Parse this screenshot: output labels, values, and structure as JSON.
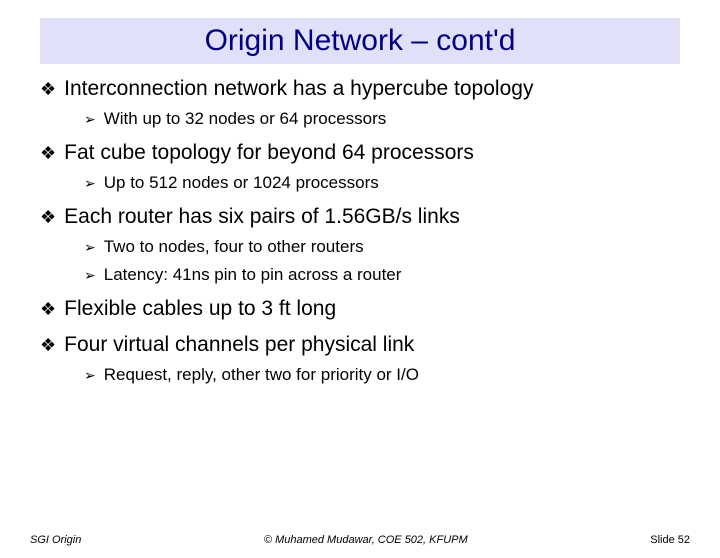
{
  "title": "Origin Network – cont'd",
  "bullets": [
    {
      "level": 1,
      "text": "Interconnection network has a hypercube topology"
    },
    {
      "level": 2,
      "text": "With up to 32 nodes or 64 processors"
    },
    {
      "level": 1,
      "text": "Fat cube topology for beyond 64 processors"
    },
    {
      "level": 2,
      "text": "Up to 512 nodes or 1024 processors"
    },
    {
      "level": 1,
      "text": "Each router has six pairs of 1.56GB/s links"
    },
    {
      "level": 2,
      "text": "Two to nodes, four to other routers"
    },
    {
      "level": 2,
      "text": "Latency: 41ns pin to pin across a router"
    },
    {
      "level": 1,
      "text": "Flexible cables up to 3 ft long"
    },
    {
      "level": 1,
      "text": "Four virtual channels per physical link"
    },
    {
      "level": 2,
      "text": "Request, reply, other two for priority or I/O"
    }
  ],
  "footer": {
    "left": "SGI Origin",
    "center": "© Muhamed Mudawar, COE 502, KFUPM",
    "right": "Slide 52"
  },
  "glyphs": {
    "level1": "❖",
    "level2": "➢"
  },
  "colors": {
    "title_bg": "#e0e0f8",
    "title_fg": "#000080",
    "body_fg": "#000000"
  }
}
